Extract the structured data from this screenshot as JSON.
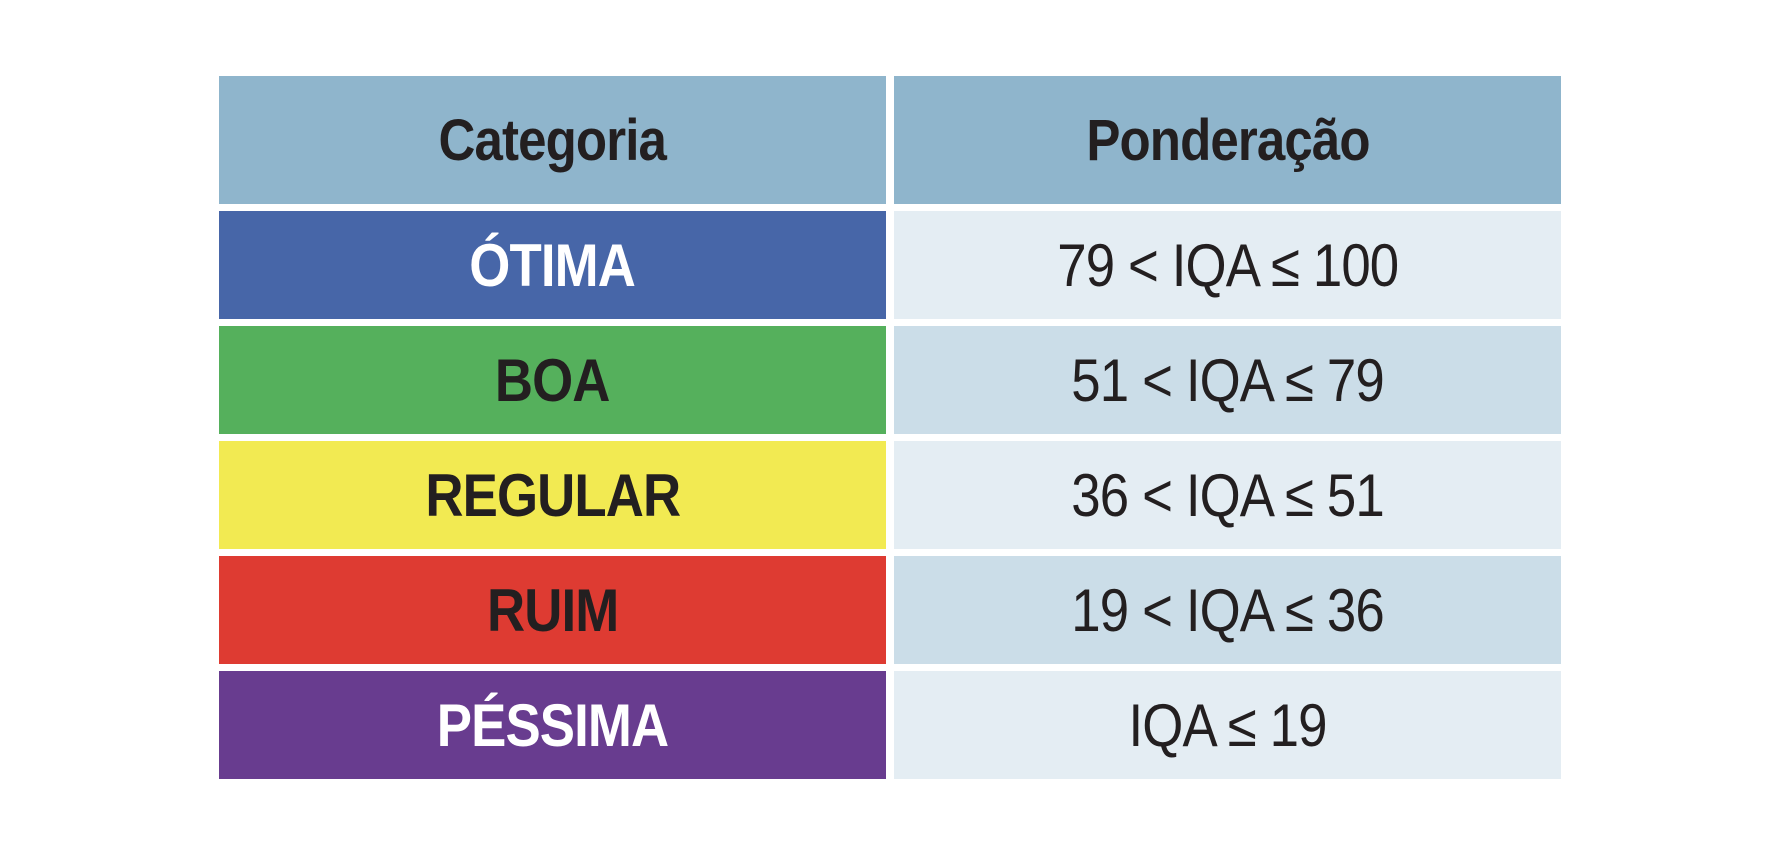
{
  "table": {
    "headers": {
      "category": "Categoria",
      "weighting": "Ponderação"
    },
    "rows": [
      {
        "category": "ÓTIMA",
        "range": "79 < IQA ≤ 100",
        "color": "#4766a8",
        "text_color": "#ffffff"
      },
      {
        "category": "BOA",
        "range": "51 < IQA ≤ 79",
        "color": "#55b05c",
        "text_color": "#231f20"
      },
      {
        "category": "REGULAR",
        "range": "36 < IQA ≤ 51",
        "color": "#f2ea52",
        "text_color": "#231f20"
      },
      {
        "category": "RUIM",
        "range": "19 < IQA ≤ 36",
        "color": "#de3b32",
        "text_color": "#231f20"
      },
      {
        "category": "PÉSSIMA",
        "range": "IQA ≤ 19",
        "color": "#683c8f",
        "text_color": "#ffffff"
      }
    ]
  }
}
